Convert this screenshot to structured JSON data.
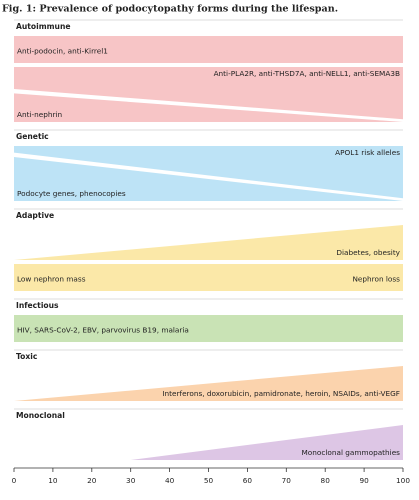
{
  "chart_data": {
    "type": "band",
    "title": "Fig. 1: Prevalence of podocytopathy forms during the lifespan.",
    "xlim": [
      0,
      100
    ],
    "xticks": [
      0,
      10,
      20,
      30,
      40,
      50,
      60,
      70,
      80,
      90,
      100
    ],
    "groups": [
      {
        "name": "Autoimmune",
        "bands": [
          {
            "labels": [
              "Anti-podocin, anti-Kirrel1"
            ],
            "label_align": [
              "left"
            ],
            "color": "#f7c5c6",
            "anchor": "bottom",
            "x": [
              0,
              100
            ],
            "values": [
              100,
              100
            ]
          },
          {
            "labels": [
              "Anti-PLA2R, anti-THSD7A, anti-NELL1, anti-SEMA3B"
            ],
            "label_align": [
              "right"
            ],
            "color": "#f7c5c6",
            "anchor": "top",
            "x": [
              0,
              100
            ],
            "values": [
              40,
              95
            ]
          },
          {
            "labels": [
              "Anti-nephrin"
            ],
            "label_align": [
              "left"
            ],
            "color": "#f7c5c6",
            "anchor": "bottom",
            "x": [
              0,
              100
            ],
            "values": [
              52,
              0
            ]
          }
        ]
      },
      {
        "name": "Genetic",
        "bands": [
          {
            "labels": [
              "APOL1 risk alleles"
            ],
            "label_align": [
              "right"
            ],
            "color": "#bde3f6",
            "anchor": "top",
            "x": [
              0,
              100
            ],
            "values": [
              12,
              95
            ]
          },
          {
            "labels": [
              "Podocyte genes, phenocopies"
            ],
            "label_align": [
              "left"
            ],
            "color": "#bde3f6",
            "anchor": "bottom",
            "x": [
              0,
              100
            ],
            "values": [
              80,
              0
            ]
          }
        ]
      },
      {
        "name": "Adaptive",
        "bands": [
          {
            "labels": [
              "Diabetes, obesity"
            ],
            "label_align": [
              "right"
            ],
            "color": "#fbe8a8",
            "anchor": "bottom",
            "x": [
              0,
              100
            ],
            "values": [
              0,
              100
            ]
          },
          {
            "labels": [
              "Low nephron mass",
              "Nephron loss"
            ],
            "label_align": [
              "left",
              "right"
            ],
            "color": "#fbe8a8",
            "anchor": "bottom",
            "x": [
              0,
              100
            ],
            "values": [
              100,
              100
            ]
          }
        ]
      },
      {
        "name": "Infectious",
        "bands": [
          {
            "labels": [
              "HIV, SARS-CoV-2, EBV, parvovirus B19, malaria"
            ],
            "label_align": [
              "left"
            ],
            "color": "#c9e3b5",
            "anchor": "bottom",
            "x": [
              0,
              100
            ],
            "values": [
              100,
              100
            ]
          }
        ]
      },
      {
        "name": "Toxic",
        "bands": [
          {
            "labels": [
              "Interferons, doxorubicin, pamidronate, heroin, NSAIDs, anti-VEGF"
            ],
            "label_align": [
              "right"
            ],
            "color": "#fbd3ad",
            "anchor": "bottom",
            "x": [
              0,
              100
            ],
            "values": [
              0,
              100
            ]
          }
        ]
      },
      {
        "name": "Monoclonal",
        "bands": [
          {
            "labels": [
              "Monoclonal gammopathies"
            ],
            "label_align": [
              "right"
            ],
            "color": "#ddc6e5",
            "anchor": "bottom",
            "x": [
              30,
              100
            ],
            "values": [
              0,
              100
            ]
          }
        ]
      }
    ]
  }
}
